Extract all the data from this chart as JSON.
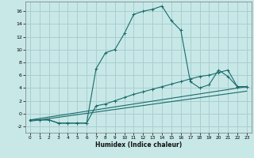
{
  "xlabel": "Humidex (Indice chaleur)",
  "xlim": [
    -0.5,
    23.5
  ],
  "ylim": [
    -3,
    17.5
  ],
  "background_color": "#c8e8e8",
  "grid_color": "#aacece",
  "line_color": "#1a6b6b",
  "x_ticks": [
    0,
    1,
    2,
    3,
    4,
    5,
    6,
    7,
    8,
    9,
    10,
    11,
    12,
    13,
    14,
    15,
    16,
    17,
    18,
    19,
    20,
    21,
    22,
    23
  ],
  "y_ticks": [
    -2,
    0,
    2,
    4,
    6,
    8,
    10,
    12,
    14,
    16
  ],
  "series1_x": [
    1,
    2,
    3,
    4,
    5,
    6,
    7,
    8,
    9,
    10,
    11,
    12,
    13,
    14,
    15,
    16,
    17,
    18,
    19,
    20,
    21,
    22,
    23
  ],
  "series1_y": [
    -1.0,
    -1.0,
    -1.5,
    -1.5,
    -1.5,
    -1.5,
    7.0,
    9.5,
    10.0,
    12.5,
    15.5,
    16.0,
    16.3,
    16.8,
    14.5,
    13.0,
    5.0,
    4.0,
    4.5,
    6.8,
    5.8,
    4.2,
    4.2
  ],
  "series2_x": [
    0,
    1,
    2,
    3,
    4,
    5,
    6,
    7,
    8,
    9,
    10,
    11,
    12,
    13,
    14,
    15,
    16,
    17,
    18,
    19,
    20,
    21,
    22,
    23
  ],
  "series2_y": [
    -1.0,
    -1.0,
    -1.0,
    -1.5,
    -1.5,
    -1.5,
    -1.5,
    1.2,
    1.5,
    2.0,
    2.5,
    3.0,
    3.4,
    3.8,
    4.2,
    4.6,
    5.0,
    5.4,
    5.8,
    6.0,
    6.4,
    6.8,
    4.2,
    4.2
  ],
  "series3_x": [
    0,
    23
  ],
  "series3_y": [
    -1.0,
    4.2
  ],
  "series4_x": [
    0,
    23
  ],
  "series4_y": [
    -1.2,
    3.5
  ]
}
